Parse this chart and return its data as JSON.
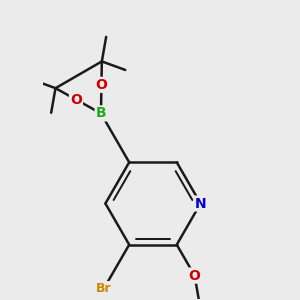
{
  "background_color": "#ebebeb",
  "bond_color": "#1a1a1a",
  "bond_width": 1.8,
  "atoms": {
    "N": {
      "color": "#0000cc"
    },
    "O": {
      "color": "#cc0000"
    },
    "B": {
      "color": "#22aa22"
    },
    "Br": {
      "color": "#cc8800"
    }
  },
  "figsize": [
    3.0,
    3.0
  ],
  "dpi": 100
}
